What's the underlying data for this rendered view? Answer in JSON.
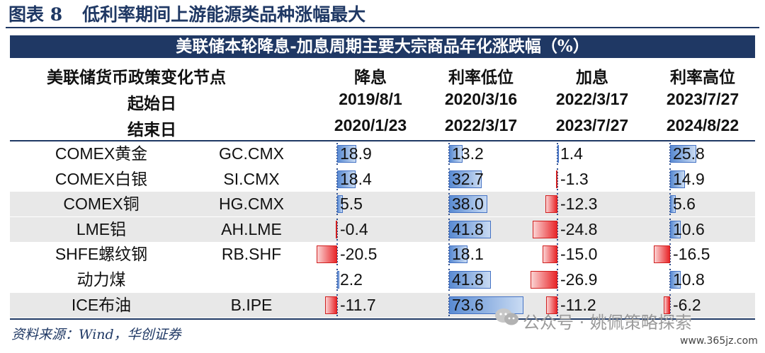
{
  "figure": {
    "label": "图表 8",
    "title": "低利率期间上游能源类品种涨幅最大"
  },
  "banner": "美联储本轮降息-加息周期主要大宗商品年化涨跌幅（%）",
  "header": {
    "row_labels": [
      "美联储货币政策变化节点",
      "起始日",
      "结束日"
    ],
    "periods": [
      {
        "name": "降息",
        "start": "2019/8/1",
        "end": "2020/1/23"
      },
      {
        "name": "利率低位",
        "start": "2020/3/16",
        "end": "2022/3/17"
      },
      {
        "name": "加息",
        "start": "2022/3/17",
        "end": "2023/7/27"
      },
      {
        "name": "利率高位",
        "start": "2023/7/27",
        "end": "2024/8/22"
      }
    ]
  },
  "rows": [
    {
      "name": "COMEX黄金",
      "code": "GC.CMX",
      "values": [
        18.9,
        13.2,
        1.4,
        25.8
      ],
      "labels": [
        "18.9",
        "13.2",
        "1.4",
        "25.8"
      ]
    },
    {
      "name": "COMEX白银",
      "code": "SI.CMX",
      "values": [
        18.4,
        32.7,
        -1.3,
        14.9
      ],
      "labels": [
        "18.4",
        "32.7",
        "-1.3",
        "14.9"
      ]
    },
    {
      "name": "COMEX铜",
      "code": "HG.CMX",
      "values": [
        5.5,
        38.0,
        -12.3,
        5.6
      ],
      "labels": [
        "5.5",
        "38.0",
        "-12.3",
        "5.6"
      ]
    },
    {
      "name": "LME铝",
      "code": "AH.LME",
      "values": [
        -0.4,
        41.8,
        -24.8,
        10.6
      ],
      "labels": [
        "-0.4",
        "41.8",
        "-24.8",
        "10.6"
      ]
    },
    {
      "name": "SHFE螺纹钢",
      "code": "RB.SHF",
      "values": [
        -20.5,
        18.1,
        -15.0,
        -16.5
      ],
      "labels": [
        "-20.5",
        "18.1",
        "-15.0",
        "-16.5"
      ]
    },
    {
      "name": "动力煤",
      "code": "",
      "values": [
        2.2,
        41.8,
        -26.9,
        10.8
      ],
      "labels": [
        "2.2",
        "41.8",
        "-26.9",
        "10.8"
      ]
    },
    {
      "name": "ICE布油",
      "code": "B.IPE",
      "values": [
        -11.7,
        73.6,
        -11.2,
        -6.2
      ],
      "labels": [
        "-11.7",
        "73.6",
        "-11.2",
        "-6.2"
      ]
    }
  ],
  "source": "资料来源：Wind，华创证券",
  "watermark": "公众号 · 姚佩策略探索",
  "site": "www.365jz.com",
  "colors": {
    "navy": "#1f3864",
    "positive_bar": "#4472c4",
    "negative_bar": "#e8262a",
    "shade": "#e8e8e8"
  }
}
